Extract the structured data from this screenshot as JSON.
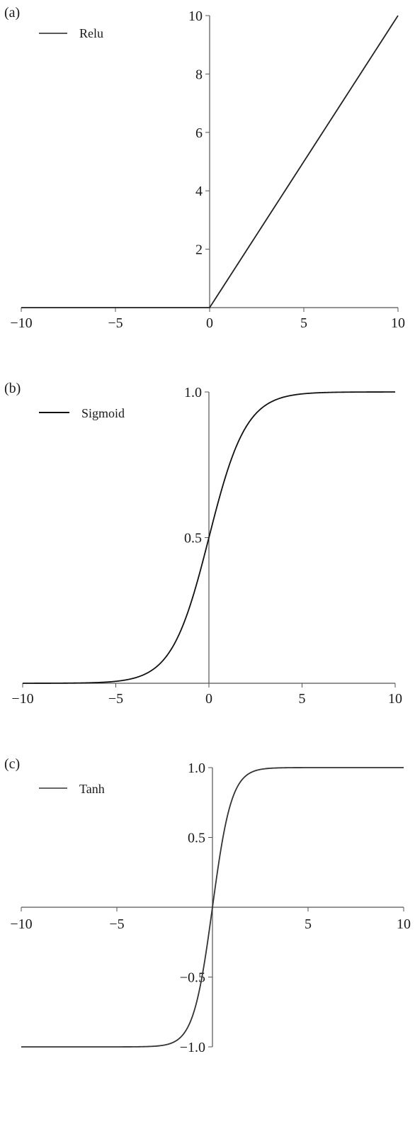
{
  "chart_data": [
    {
      "type": "line",
      "panel_label": "(a)",
      "xlim": [
        -10,
        10
      ],
      "ylim": [
        0,
        10
      ],
      "xticks": [
        -10,
        -5,
        0,
        5,
        10
      ],
      "xtick_labels": [
        "−10",
        "−5",
        "0",
        "5",
        "10"
      ],
      "yticks": [
        2,
        4,
        6,
        8,
        10
      ],
      "ytick_labels": [
        "2",
        "4",
        "6",
        "8",
        "10"
      ],
      "grid": false,
      "legend": "top-left",
      "series": [
        {
          "name": "Relu",
          "function": "relu",
          "x": [
            -10,
            0,
            10
          ],
          "y": [
            0,
            0,
            10
          ],
          "color": "#222222"
        }
      ]
    },
    {
      "type": "line",
      "panel_label": "(b)",
      "xlim": [
        -10,
        10
      ],
      "ylim": [
        0,
        1
      ],
      "xticks": [
        -10,
        -5,
        0,
        5,
        10
      ],
      "xtick_labels": [
        "−10",
        "−5",
        "0",
        "5",
        "10"
      ],
      "yticks": [
        0.5,
        1.0
      ],
      "ytick_labels": [
        "0.5",
        "1.0"
      ],
      "grid": false,
      "legend": "top-left",
      "series": [
        {
          "name": "Sigmoid",
          "function": "sigmoid",
          "x": [
            -10,
            -5,
            -2.5,
            0,
            2.5,
            5,
            10
          ],
          "y": [
            4.54e-05,
            0.0067,
            0.0759,
            0.5,
            0.9241,
            0.9933,
            0.99995
          ],
          "color": "#111111"
        }
      ]
    },
    {
      "type": "line",
      "panel_label": "(c)",
      "xlim": [
        -10,
        10
      ],
      "ylim": [
        -1,
        1
      ],
      "xticks": [
        -10,
        -5,
        5,
        10
      ],
      "xtick_labels": [
        "−10",
        "−5",
        "5",
        "10"
      ],
      "yticks": [
        -1.0,
        -0.5,
        0.5,
        1.0
      ],
      "ytick_labels": [
        "−1.0",
        "−0.5",
        "0.5",
        "1.0"
      ],
      "grid": false,
      "legend": "top-left",
      "series": [
        {
          "name": "Tanh",
          "function": "tanh",
          "x": [
            -10,
            -5,
            -1,
            0,
            1,
            5,
            10
          ],
          "y": [
            -1.0,
            -0.9999,
            -0.7616,
            0,
            0.7616,
            0.9999,
            1.0
          ],
          "color": "#333333"
        }
      ]
    }
  ]
}
